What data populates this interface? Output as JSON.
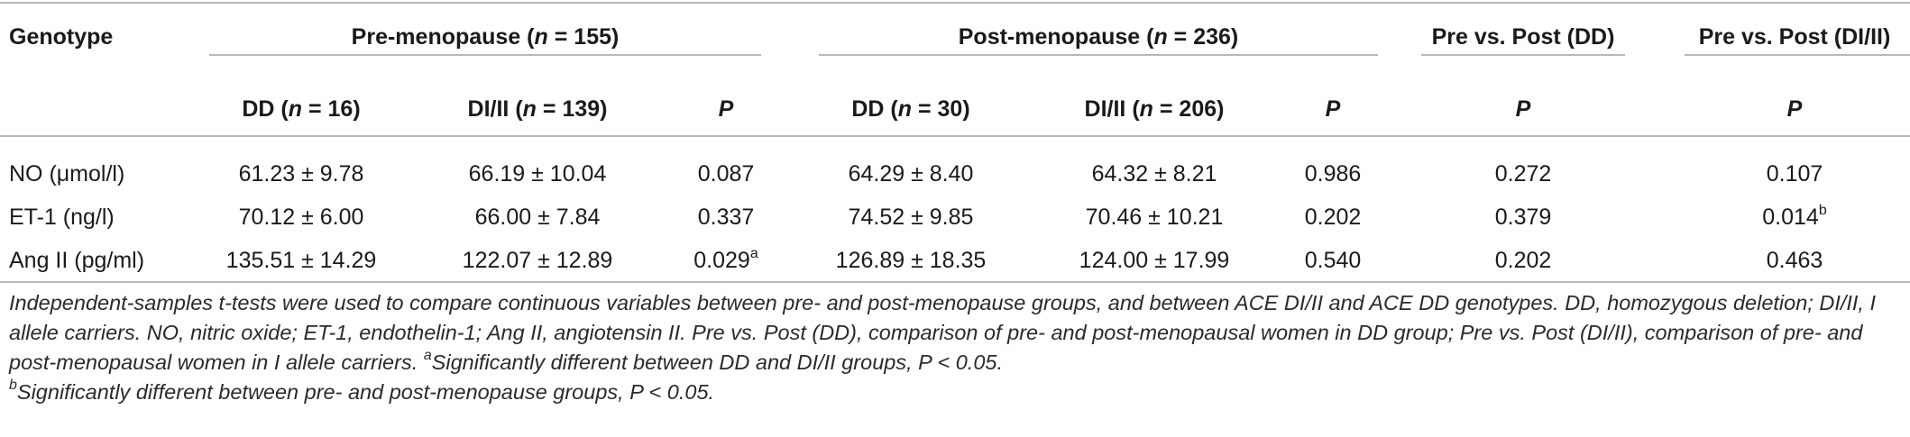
{
  "table": {
    "genotype_header": "Genotype",
    "groups": [
      {
        "label_prefix": "Pre-menopause (",
        "n_sym": "n",
        "label_suffix": " = 155)"
      },
      {
        "label_prefix": "Post-menopause (",
        "n_sym": "n",
        "label_suffix": " = 236)"
      },
      {
        "label_prefix": "Pre vs. Post (DD)",
        "n_sym": "",
        "label_suffix": ""
      },
      {
        "label_prefix": "Pre vs. Post (DI/II)",
        "n_sym": "",
        "label_suffix": ""
      }
    ],
    "subheaders": [
      {
        "prefix": "DD (",
        "n_sym": "n",
        "suffix": " = 16)"
      },
      {
        "prefix": "DI/II (",
        "n_sym": "n",
        "suffix": " = 139)"
      },
      {
        "prefix": "",
        "n_sym": "P",
        "suffix": ""
      },
      {
        "prefix": "DD (",
        "n_sym": "n",
        "suffix": " = 30)"
      },
      {
        "prefix": "DI/II (",
        "n_sym": "n",
        "suffix": " = 206)"
      },
      {
        "prefix": "",
        "n_sym": "P",
        "suffix": ""
      },
      {
        "prefix": "",
        "n_sym": "P",
        "suffix": ""
      },
      {
        "prefix": "",
        "n_sym": "P",
        "suffix": ""
      }
    ],
    "rows": [
      {
        "label": "NO (μmol/l)",
        "cells": [
          {
            "v": "61.23 ± 9.78",
            "sup": ""
          },
          {
            "v": "66.19 ± 10.04",
            "sup": ""
          },
          {
            "v": "0.087",
            "sup": ""
          },
          {
            "v": "64.29 ± 8.40",
            "sup": ""
          },
          {
            "v": "64.32 ± 8.21",
            "sup": ""
          },
          {
            "v": "0.986",
            "sup": ""
          },
          {
            "v": "0.272",
            "sup": ""
          },
          {
            "v": "0.107",
            "sup": ""
          }
        ]
      },
      {
        "label": "ET-1 (ng/l)",
        "cells": [
          {
            "v": "70.12 ± 6.00",
            "sup": ""
          },
          {
            "v": "66.00 ± 7.84",
            "sup": ""
          },
          {
            "v": "0.337",
            "sup": ""
          },
          {
            "v": "74.52 ± 9.85",
            "sup": ""
          },
          {
            "v": "70.46 ± 10.21",
            "sup": ""
          },
          {
            "v": "0.202",
            "sup": ""
          },
          {
            "v": "0.379",
            "sup": ""
          },
          {
            "v": "0.014",
            "sup": "b"
          }
        ]
      },
      {
        "label": "Ang II (pg/ml)",
        "cells": [
          {
            "v": "135.51 ± 14.29",
            "sup": ""
          },
          {
            "v": "122.07 ± 12.89",
            "sup": ""
          },
          {
            "v": "0.029",
            "sup": "a"
          },
          {
            "v": "126.89 ± 18.35",
            "sup": ""
          },
          {
            "v": "124.00 ± 17.99",
            "sup": ""
          },
          {
            "v": "0.540",
            "sup": ""
          },
          {
            "v": "0.202",
            "sup": ""
          },
          {
            "v": "0.463",
            "sup": ""
          }
        ]
      }
    ]
  },
  "footnote": {
    "text_main": "Independent-samples t-tests were used to compare continuous variables between pre- and post-menopause groups, and between ACE DI/II and ACE DD genotypes. DD, homozygous deletion; DI/II, I allele carriers. NO, nitric oxide; ET-1, endothelin-1; Ang II, angiotensin II. Pre vs. Post (DD), comparison of pre- and post-menopausal women in DD group; Pre vs. Post (DI/II), comparison of pre- and post-menopausal women in I allele carriers. ",
    "sup_a": "a",
    "text_a": "Significantly different between DD and DI/II groups, P < 0.05.",
    "sup_b": "b",
    "text_b": "Significantly different between pre- and post-menopause groups, P < 0.05."
  }
}
